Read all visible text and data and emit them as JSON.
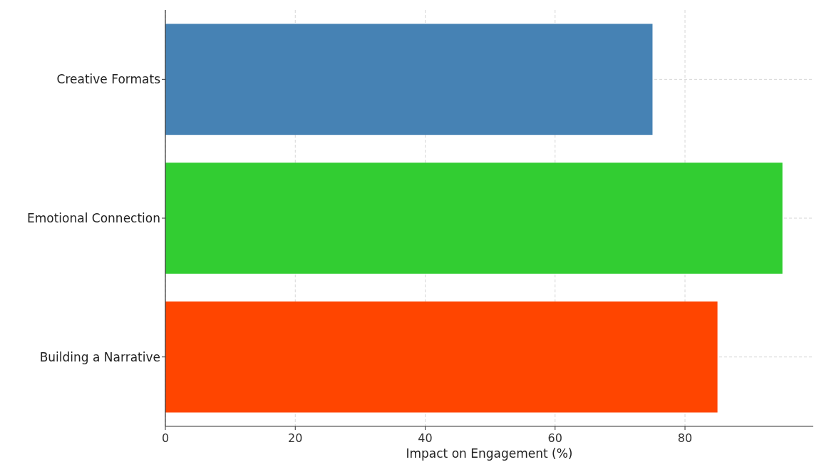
{
  "chart_data": {
    "type": "bar",
    "orientation": "horizontal",
    "xlabel": "Impact on Engagement (%)",
    "categories": [
      "Creative Formats",
      "Emotional Connection",
      "Building a Narrative"
    ],
    "values": [
      75,
      95,
      85
    ],
    "colors": [
      "#4682b4",
      "#32cd32",
      "#ff4500"
    ],
    "xlim": [
      0,
      99.75
    ],
    "xticks": [
      0,
      20,
      40,
      60,
      80
    ],
    "grid": true
  }
}
